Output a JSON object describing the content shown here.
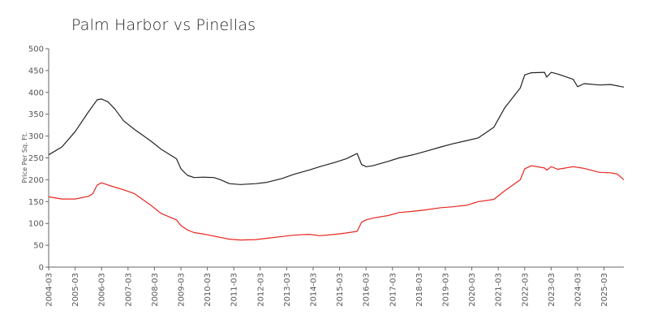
{
  "chart_data": {
    "type": "line",
    "title": "Palm Harbor vs Pinellas",
    "xlabel": "",
    "ylabel": "Price Per Sq. Ft.",
    "ylim": [
      0,
      500
    ],
    "y_ticks": [
      "0",
      "50",
      "100",
      "150",
      "200",
      "250",
      "300",
      "350",
      "400",
      "450",
      "500"
    ],
    "x_ticks": [
      "2004-03",
      "2005-03",
      "2006-03",
      "2007-03",
      "2008-03",
      "2009-03",
      "2010-03",
      "2011-03",
      "2012-03",
      "2013-03",
      "2014-03",
      "2015-03",
      "2016-03",
      "2017-03",
      "2018-03",
      "2019-03",
      "2020-03",
      "2021-03",
      "2022-03",
      "2023-03",
      "2024-03",
      "2025-03"
    ],
    "x_range": [
      "2004-03",
      "2025-12"
    ],
    "grid": false,
    "legend": "none",
    "series": [
      {
        "color": "#222222",
        "points": [
          [
            "2004-03",
            257
          ],
          [
            "2004-09",
            275
          ],
          [
            "2005-03",
            310
          ],
          [
            "2005-09",
            355
          ],
          [
            "2006-01",
            383
          ],
          [
            "2006-03",
            385
          ],
          [
            "2006-06",
            378
          ],
          [
            "2006-09",
            362
          ],
          [
            "2007-01",
            335
          ],
          [
            "2007-06",
            315
          ],
          [
            "2008-01",
            290
          ],
          [
            "2008-06",
            270
          ],
          [
            "2009-01",
            248
          ],
          [
            "2009-03",
            225
          ],
          [
            "2009-06",
            210
          ],
          [
            "2009-09",
            205
          ],
          [
            "2010-01",
            206
          ],
          [
            "2010-06",
            205
          ],
          [
            "2010-09",
            200
          ],
          [
            "2011-01",
            191
          ],
          [
            "2011-06",
            189
          ],
          [
            "2012-01",
            191
          ],
          [
            "2012-06",
            194
          ],
          [
            "2013-01",
            203
          ],
          [
            "2013-06",
            212
          ],
          [
            "2014-01",
            222
          ],
          [
            "2014-06",
            230
          ],
          [
            "2015-01",
            240
          ],
          [
            "2015-06",
            248
          ],
          [
            "2015-11",
            260
          ],
          [
            "2016-01",
            235
          ],
          [
            "2016-03",
            230
          ],
          [
            "2016-06",
            232
          ],
          [
            "2017-01",
            242
          ],
          [
            "2017-06",
            250
          ],
          [
            "2018-01",
            258
          ],
          [
            "2018-06",
            265
          ],
          [
            "2019-01",
            275
          ],
          [
            "2019-06",
            282
          ],
          [
            "2020-01",
            290
          ],
          [
            "2020-06",
            296
          ],
          [
            "2021-01",
            320
          ],
          [
            "2021-06",
            365
          ],
          [
            "2022-01",
            410
          ],
          [
            "2022-03",
            440
          ],
          [
            "2022-06",
            445
          ],
          [
            "2022-12",
            446
          ],
          [
            "2023-01",
            435
          ],
          [
            "2023-03",
            446
          ],
          [
            "2023-06",
            442
          ],
          [
            "2024-01",
            430
          ],
          [
            "2024-03",
            413
          ],
          [
            "2024-06",
            420
          ],
          [
            "2025-01",
            417
          ],
          [
            "2025-06",
            418
          ],
          [
            "2025-12",
            412
          ]
        ]
      },
      {
        "color": "#e8251f",
        "points": [
          [
            "2004-03",
            161
          ],
          [
            "2004-09",
            156
          ],
          [
            "2005-03",
            156
          ],
          [
            "2005-09",
            162
          ],
          [
            "2005-11",
            168
          ],
          [
            "2006-01",
            188
          ],
          [
            "2006-03",
            193
          ],
          [
            "2006-06",
            188
          ],
          [
            "2006-09",
            183
          ],
          [
            "2007-01",
            177
          ],
          [
            "2007-06",
            168
          ],
          [
            "2008-01",
            143
          ],
          [
            "2008-06",
            123
          ],
          [
            "2009-01",
            108
          ],
          [
            "2009-03",
            95
          ],
          [
            "2009-06",
            85
          ],
          [
            "2009-09",
            79
          ],
          [
            "2010-01",
            76
          ],
          [
            "2010-06",
            71
          ],
          [
            "2011-01",
            64
          ],
          [
            "2011-06",
            62
          ],
          [
            "2012-01",
            63
          ],
          [
            "2012-06",
            66
          ],
          [
            "2013-01",
            70
          ],
          [
            "2013-06",
            73
          ],
          [
            "2014-01",
            75
          ],
          [
            "2014-06",
            72
          ],
          [
            "2015-01",
            75
          ],
          [
            "2015-06",
            78
          ],
          [
            "2015-11",
            82
          ],
          [
            "2016-01",
            103
          ],
          [
            "2016-03",
            108
          ],
          [
            "2016-06",
            112
          ],
          [
            "2017-01",
            118
          ],
          [
            "2017-06",
            125
          ],
          [
            "2018-01",
            128
          ],
          [
            "2018-06",
            131
          ],
          [
            "2019-01",
            136
          ],
          [
            "2019-06",
            138
          ],
          [
            "2020-01",
            142
          ],
          [
            "2020-06",
            150
          ],
          [
            "2021-01",
            155
          ],
          [
            "2021-06",
            175
          ],
          [
            "2022-01",
            200
          ],
          [
            "2022-03",
            225
          ],
          [
            "2022-06",
            232
          ],
          [
            "2022-12",
            227
          ],
          [
            "2023-01",
            222
          ],
          [
            "2023-03",
            230
          ],
          [
            "2023-06",
            224
          ],
          [
            "2024-01",
            230
          ],
          [
            "2024-06",
            226
          ],
          [
            "2025-01",
            217
          ],
          [
            "2025-06",
            216
          ],
          [
            "2025-09",
            213
          ],
          [
            "2025-12",
            200
          ]
        ]
      }
    ]
  }
}
